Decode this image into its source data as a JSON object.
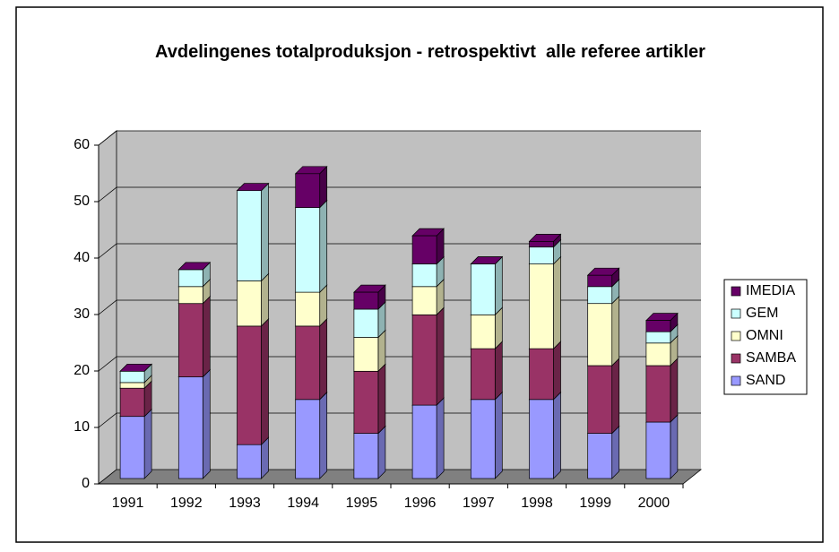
{
  "chart_data": {
    "type": "bar3d_stacked",
    "title": "Avdelingenes totalproduksjon - retrospektivt  alle referee artikler",
    "categories": [
      "1991",
      "1992",
      "1993",
      "1994",
      "1995",
      "1996",
      "1997",
      "1998",
      "1999",
      "2000"
    ],
    "series": [
      {
        "name": "SAND",
        "color": "#9999ff",
        "values": [
          11,
          18,
          6,
          14,
          8,
          13,
          14,
          14,
          8,
          10
        ]
      },
      {
        "name": "SAMBA",
        "color": "#993366",
        "values": [
          5,
          13,
          21,
          13,
          11,
          16,
          9,
          9,
          12,
          10
        ]
      },
      {
        "name": "OMNI",
        "color": "#ffffcc",
        "values": [
          1,
          3,
          8,
          6,
          6,
          5,
          6,
          15,
          11,
          4
        ]
      },
      {
        "name": "GEM",
        "color": "#ccffff",
        "values": [
          2,
          3,
          16,
          15,
          5,
          4,
          9,
          3,
          3,
          2
        ]
      },
      {
        "name": "IMEDIA",
        "color": "#660066",
        "values": [
          0,
          0,
          0,
          6,
          3,
          5,
          0,
          1,
          2,
          2
        ]
      }
    ],
    "ylim": [
      0,
      60
    ],
    "yticks": [
      0,
      10,
      20,
      30,
      40,
      50,
      60
    ],
    "grid": true,
    "legend": "right"
  }
}
